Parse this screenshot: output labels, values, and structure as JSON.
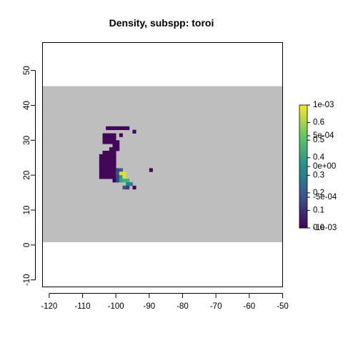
{
  "chart_data": {
    "type": "heatmap",
    "title": "Density, subspp: toroi",
    "xlabel": "",
    "ylabel": "",
    "xlim": [
      -122,
      -50
    ],
    "ylim": [
      -12,
      58
    ],
    "x_ticks": [
      "-120",
      "-110",
      "-100",
      "-90",
      "-80",
      "-70",
      "-60",
      "-50"
    ],
    "y_ticks": [
      "-10",
      "0",
      "10",
      "20",
      "30",
      "40",
      "50"
    ],
    "background_band": {
      "ymin": 0.8,
      "ymax": 45.5,
      "color": "#bebebe"
    },
    "cell_size": 1,
    "colors": {
      "low": "#440154",
      "mid": "#3b528b",
      "teal": "#21908c",
      "green": "#5dc863",
      "high": "#fde725"
    },
    "cells": [
      {
        "x": -103,
        "y": 33,
        "v": 0.02
      },
      {
        "x": -102,
        "y": 33,
        "v": 0.02
      },
      {
        "x": -101,
        "y": 33,
        "v": 0.02
      },
      {
        "x": -100,
        "y": 33,
        "v": 0.02
      },
      {
        "x": -99,
        "y": 33,
        "v": 0.02
      },
      {
        "x": -98,
        "y": 33,
        "v": 0.02
      },
      {
        "x": -97,
        "y": 33,
        "v": 0.02
      },
      {
        "x": -95,
        "y": 32,
        "v": 0.02
      },
      {
        "x": -104,
        "y": 31,
        "v": 0.02
      },
      {
        "x": -103,
        "y": 31,
        "v": 0.02
      },
      {
        "x": -102,
        "y": 31,
        "v": 0.02
      },
      {
        "x": -101,
        "y": 31,
        "v": 0.02
      },
      {
        "x": -99,
        "y": 31,
        "v": 0.02
      },
      {
        "x": -104,
        "y": 30,
        "v": 0.02
      },
      {
        "x": -103,
        "y": 30,
        "v": 0.02
      },
      {
        "x": -102,
        "y": 30,
        "v": 0.02
      },
      {
        "x": -101,
        "y": 30,
        "v": 0.02
      },
      {
        "x": -104,
        "y": 29,
        "v": 0.02
      },
      {
        "x": -103,
        "y": 29,
        "v": 0.02
      },
      {
        "x": -102,
        "y": 29,
        "v": 0.02
      },
      {
        "x": -101,
        "y": 29,
        "v": 0.02
      },
      {
        "x": -100,
        "y": 29,
        "v": 0.02
      },
      {
        "x": -101,
        "y": 28,
        "v": 0.02
      },
      {
        "x": -100,
        "y": 28,
        "v": 0.02
      },
      {
        "x": -102,
        "y": 27,
        "v": 0.02
      },
      {
        "x": -101,
        "y": 27,
        "v": 0.02
      },
      {
        "x": -100,
        "y": 27,
        "v": 0.02
      },
      {
        "x": -104,
        "y": 26,
        "v": 0.02
      },
      {
        "x": -103,
        "y": 26,
        "v": 0.02
      },
      {
        "x": -102,
        "y": 26,
        "v": 0.02
      },
      {
        "x": -101,
        "y": 26,
        "v": 0.02
      },
      {
        "x": -105,
        "y": 25,
        "v": 0.02
      },
      {
        "x": -104,
        "y": 25,
        "v": 0.02
      },
      {
        "x": -103,
        "y": 25,
        "v": 0.02
      },
      {
        "x": -102,
        "y": 25,
        "v": 0.02
      },
      {
        "x": -101,
        "y": 25,
        "v": 0.02
      },
      {
        "x": -105,
        "y": 24,
        "v": 0.02
      },
      {
        "x": -104,
        "y": 24,
        "v": 0.02
      },
      {
        "x": -103,
        "y": 24,
        "v": 0.02
      },
      {
        "x": -102,
        "y": 24,
        "v": 0.02
      },
      {
        "x": -101,
        "y": 24,
        "v": 0.02
      },
      {
        "x": -105,
        "y": 23,
        "v": 0.02
      },
      {
        "x": -104,
        "y": 23,
        "v": 0.02
      },
      {
        "x": -103,
        "y": 23,
        "v": 0.02
      },
      {
        "x": -102,
        "y": 23,
        "v": 0.02
      },
      {
        "x": -101,
        "y": 23,
        "v": 0.02
      },
      {
        "x": -105,
        "y": 22,
        "v": 0.02
      },
      {
        "x": -104,
        "y": 22,
        "v": 0.02
      },
      {
        "x": -103,
        "y": 22,
        "v": 0.02
      },
      {
        "x": -102,
        "y": 22,
        "v": 0.02
      },
      {
        "x": -101,
        "y": 22,
        "v": 0.02
      },
      {
        "x": -105,
        "y": 21,
        "v": 0.02
      },
      {
        "x": -104,
        "y": 21,
        "v": 0.02
      },
      {
        "x": -103,
        "y": 21,
        "v": 0.02
      },
      {
        "x": -102,
        "y": 21,
        "v": 0.02
      },
      {
        "x": -101,
        "y": 21,
        "v": 0.02
      },
      {
        "x": -100,
        "y": 21,
        "v": 0.2
      },
      {
        "x": -99,
        "y": 21,
        "v": 0.3
      },
      {
        "x": -90,
        "y": 21,
        "v": 0.02
      },
      {
        "x": -105,
        "y": 20,
        "v": 0.02
      },
      {
        "x": -104,
        "y": 20,
        "v": 0.02
      },
      {
        "x": -103,
        "y": 20,
        "v": 0.02
      },
      {
        "x": -102,
        "y": 20,
        "v": 0.02
      },
      {
        "x": -101,
        "y": 20,
        "v": 0.02
      },
      {
        "x": -100,
        "y": 20,
        "v": 0.25
      },
      {
        "x": -99,
        "y": 20,
        "v": 0.95
      },
      {
        "x": -98,
        "y": 20,
        "v": 0.95
      },
      {
        "x": -105,
        "y": 19,
        "v": 0.02
      },
      {
        "x": -104,
        "y": 19,
        "v": 0.02
      },
      {
        "x": -103,
        "y": 19,
        "v": 0.02
      },
      {
        "x": -102,
        "y": 19,
        "v": 0.02
      },
      {
        "x": -101,
        "y": 19,
        "v": 0.02
      },
      {
        "x": -100,
        "y": 19,
        "v": 0.2
      },
      {
        "x": -99,
        "y": 19,
        "v": 0.55
      },
      {
        "x": -98,
        "y": 19,
        "v": 0.95
      },
      {
        "x": -101,
        "y": 18,
        "v": 0.02
      },
      {
        "x": -100,
        "y": 18,
        "v": 0.2
      },
      {
        "x": -99,
        "y": 18,
        "v": 0.6
      },
      {
        "x": -98,
        "y": 18,
        "v": 0.65
      },
      {
        "x": -97,
        "y": 18,
        "v": 0.65
      },
      {
        "x": -97,
        "y": 17,
        "v": 0.45
      },
      {
        "x": -96,
        "y": 17,
        "v": 0.45
      },
      {
        "x": -98,
        "y": 16,
        "v": 0.25
      },
      {
        "x": -97,
        "y": 16,
        "v": 0.2
      },
      {
        "x": -95,
        "y": 16,
        "v": 0.02
      }
    ],
    "legend": {
      "type": "colorbar",
      "placement": "right",
      "labels_primary": [
        "1e-03",
        "5e-04",
        "0e+00",
        "-5e-04",
        "-1e-03"
      ],
      "labels_secondary": [
        "0.6",
        "0.5",
        "0.4",
        "0.3",
        "0.2",
        "0.1",
        "0.0"
      ],
      "primary_range": [
        -0.001,
        0.001
      ],
      "secondary_range": [
        0,
        0.7
      ]
    }
  }
}
